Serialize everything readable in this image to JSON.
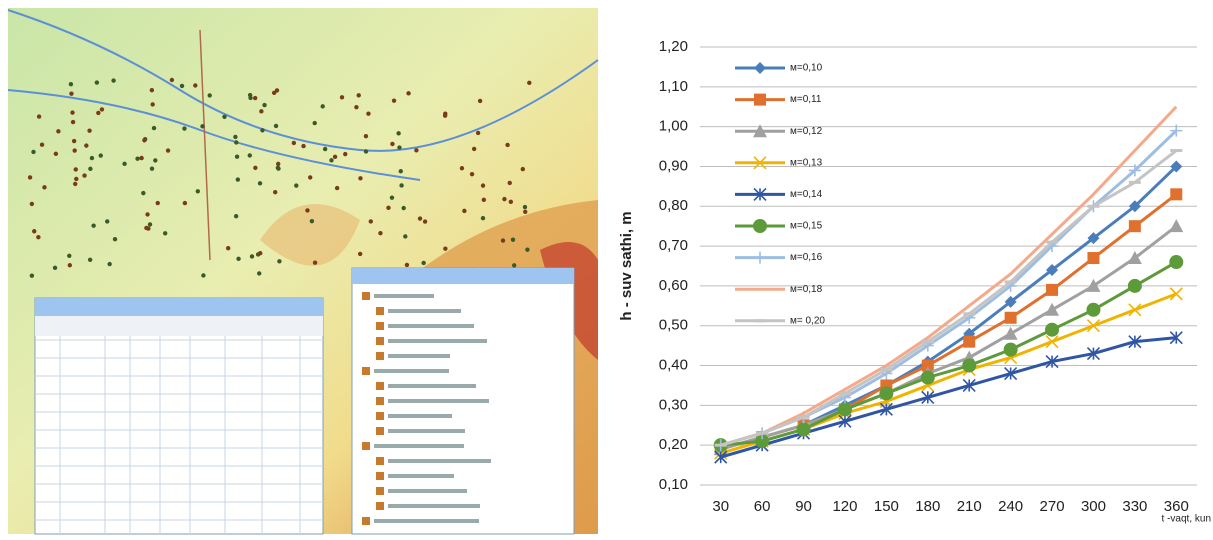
{
  "chart_data": {
    "type": "line",
    "y_label": "h - suv  sathi, m",
    "x_label": "t -vaqt, kun",
    "categories": [
      "30",
      "60",
      "90",
      "120",
      "150",
      "180",
      "210",
      "240",
      "270",
      "300",
      "330",
      "360"
    ],
    "ylim": [
      0.1,
      1.2
    ],
    "yticks": [
      {
        "value": 0.1,
        "label": "0,10"
      },
      {
        "value": 0.2,
        "label": "0,20"
      },
      {
        "value": 0.3,
        "label": "0,30"
      },
      {
        "value": 0.4,
        "label": "0,40"
      },
      {
        "value": 0.5,
        "label": "0,50"
      },
      {
        "value": 0.6,
        "label": "0,60"
      },
      {
        "value": 0.7,
        "label": "0,70"
      },
      {
        "value": 0.8,
        "label": "0,80"
      },
      {
        "value": 0.9,
        "label": "0,90"
      },
      {
        "value": 1.0,
        "label": "1,00"
      },
      {
        "value": 1.1,
        "label": "1,10"
      },
      {
        "value": 1.2,
        "label": "1,20"
      }
    ],
    "grid": true,
    "legend": "top-left",
    "series": [
      {
        "name": "м=0,10",
        "color": "#4a7ebb",
        "marker": "diamond",
        "values": [
          0.19,
          0.22,
          0.25,
          0.3,
          0.35,
          0.41,
          0.48,
          0.56,
          0.64,
          0.72,
          0.8,
          0.9
        ]
      },
      {
        "name": "м=0,11",
        "color": "#e0702e",
        "marker": "square",
        "values": [
          0.19,
          0.22,
          0.25,
          0.29,
          0.35,
          0.4,
          0.46,
          0.52,
          0.59,
          0.67,
          0.75,
          0.83
        ]
      },
      {
        "name": "м=0,12",
        "color": "#a0a0a0",
        "marker": "triangle",
        "values": [
          0.19,
          0.22,
          0.25,
          0.29,
          0.33,
          0.38,
          0.42,
          0.48,
          0.54,
          0.6,
          0.67,
          0.75
        ]
      },
      {
        "name": "м=0,13",
        "color": "#f0b400",
        "marker": "x",
        "values": [
          0.18,
          0.21,
          0.24,
          0.28,
          0.31,
          0.35,
          0.39,
          0.42,
          0.46,
          0.5,
          0.54,
          0.58
        ]
      },
      {
        "name": "м=0,14",
        "color": "#2f55a4",
        "marker": "star",
        "values": [
          0.17,
          0.2,
          0.23,
          0.26,
          0.29,
          0.32,
          0.35,
          0.38,
          0.41,
          0.43,
          0.46,
          0.47
        ]
      },
      {
        "name": "м=0,15",
        "color": "#5c9a3a",
        "marker": "circle",
        "values": [
          0.2,
          0.21,
          0.24,
          0.29,
          0.33,
          0.37,
          0.4,
          0.44,
          0.49,
          0.54,
          0.6,
          0.66
        ]
      },
      {
        "name": "м=0,16",
        "color": "#9dbde3",
        "marker": "plus",
        "values": [
          0.2,
          0.23,
          0.27,
          0.32,
          0.38,
          0.45,
          0.52,
          0.6,
          0.7,
          0.8,
          0.89,
          0.99
        ]
      },
      {
        "name": "м=0,18",
        "color": "#f4a98a",
        "marker": "none",
        "values": [
          0.2,
          0.23,
          0.28,
          0.34,
          0.4,
          0.47,
          0.55,
          0.63,
          0.73,
          0.83,
          0.94,
          1.05
        ]
      },
      {
        "name": "м= 0,20",
        "color": "#c4c4c4",
        "marker": "dash",
        "values": [
          0.2,
          0.23,
          0.27,
          0.33,
          0.39,
          0.46,
          0.53,
          0.61,
          0.71,
          0.8,
          0.86,
          0.94
        ]
      }
    ]
  }
}
